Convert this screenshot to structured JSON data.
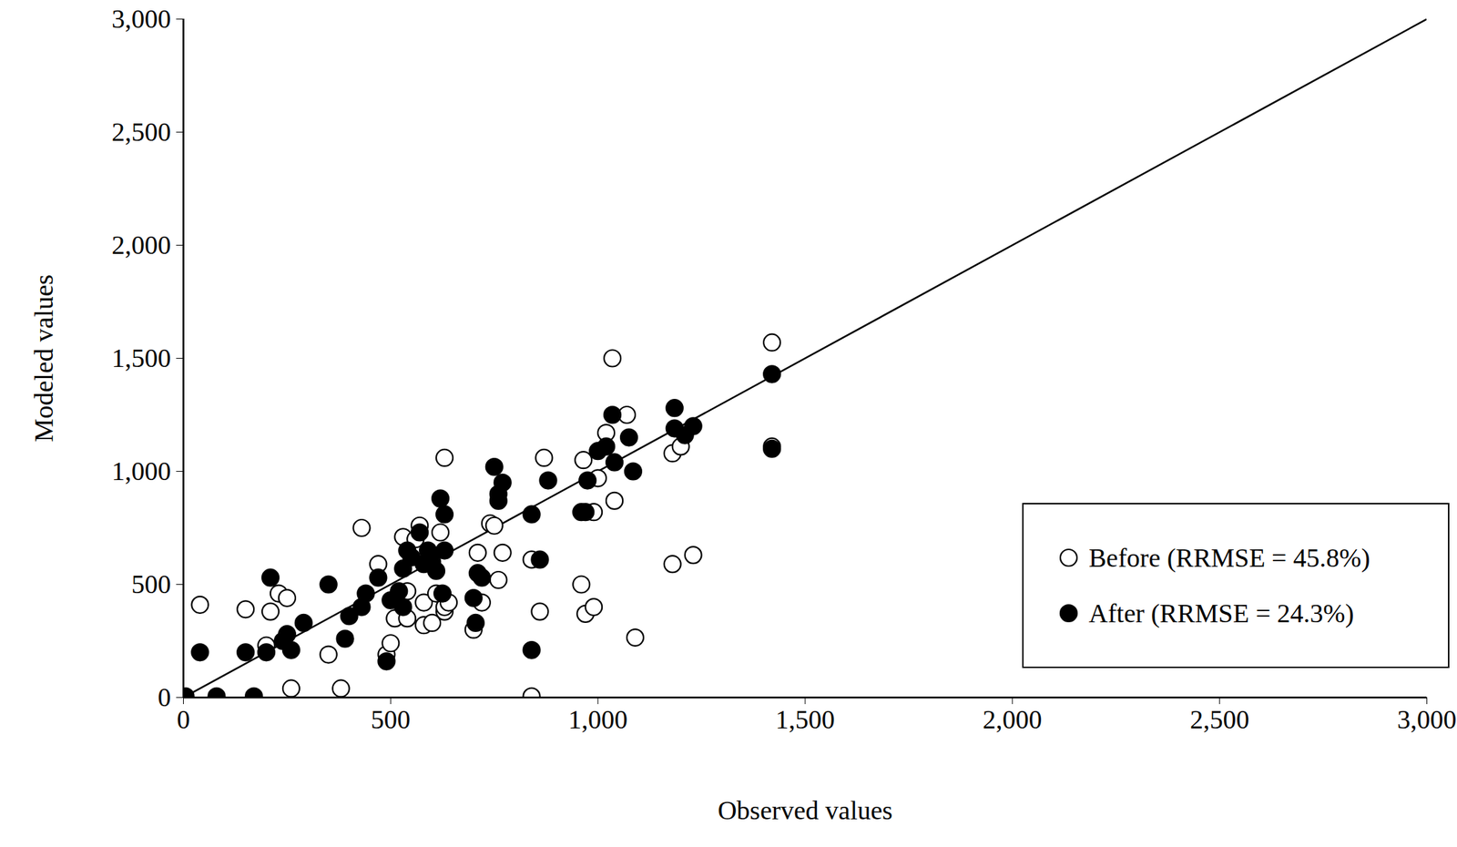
{
  "chart_data": {
    "type": "scatter",
    "x_label": "Observed values",
    "y_label": "Modeled values",
    "xlim": [
      0,
      3000
    ],
    "ylim": [
      0,
      3000
    ],
    "xticks": [
      0,
      500,
      1000,
      1500,
      2000,
      2500,
      3000
    ],
    "yticks": [
      0,
      500,
      1000,
      1500,
      2000,
      2500,
      3000
    ],
    "grid": false,
    "legend": "bottom-right",
    "reference_line": {
      "x": [
        0,
        3000
      ],
      "y": [
        0,
        3000
      ],
      "color": "#000000"
    },
    "series": [
      {
        "name": "Before (RRMSE = 45.8%)",
        "color": "#000000",
        "marker": "circle-open",
        "x": [
          40,
          150,
          210,
          230,
          250,
          260,
          350,
          380,
          430,
          470,
          490,
          500,
          510,
          530,
          540,
          540,
          560,
          570,
          580,
          580,
          600,
          610,
          620,
          630,
          630,
          630,
          710,
          720,
          740,
          750,
          760,
          770,
          840,
          840,
          860,
          870,
          960,
          965,
          970,
          990,
          990,
          1020,
          1035,
          1040,
          1070,
          1180,
          1180,
          1200,
          1230,
          1090,
          1420,
          1420,
          1000,
          200,
          640,
          700
        ],
        "values": [
          410,
          390,
          380,
          460,
          440,
          40,
          190,
          40,
          750,
          590,
          190,
          240,
          350,
          710,
          350,
          470,
          700,
          760,
          420,
          320,
          330,
          460,
          730,
          380,
          1060,
          400,
          640,
          420,
          770,
          760,
          520,
          640,
          610,
          5,
          380,
          1060,
          500,
          1050,
          370,
          400,
          820,
          1170,
          1500,
          870,
          1250,
          1080,
          590,
          1110,
          630,
          265,
          1570,
          1110,
          970,
          230,
          420,
          300
        ]
      },
      {
        "name": "After (RRMSE = 24.3%)",
        "color": "#000000",
        "marker": "circle",
        "x": [
          5,
          40,
          80,
          170,
          150,
          200,
          210,
          240,
          250,
          260,
          290,
          350,
          390,
          400,
          430,
          440,
          470,
          490,
          500,
          520,
          530,
          530,
          540,
          550,
          570,
          580,
          590,
          600,
          610,
          620,
          625,
          630,
          630,
          700,
          705,
          710,
          720,
          750,
          760,
          760,
          770,
          840,
          840,
          860,
          880,
          960,
          970,
          975,
          1000,
          1020,
          1035,
          1040,
          1075,
          1085,
          1185,
          1185,
          1230,
          1420,
          1420,
          1210
        ],
        "values": [
          5,
          200,
          5,
          5,
          200,
          200,
          530,
          250,
          280,
          210,
          330,
          500,
          260,
          360,
          400,
          460,
          530,
          160,
          430,
          470,
          400,
          570,
          650,
          620,
          730,
          590,
          650,
          600,
          560,
          880,
          460,
          810,
          650,
          440,
          330,
          550,
          530,
          1020,
          900,
          870,
          950,
          210,
          810,
          610,
          960,
          820,
          820,
          960,
          1090,
          1110,
          1250,
          1040,
          1150,
          1000,
          1280,
          1190,
          1200,
          1430,
          1100,
          1160
        ]
      }
    ]
  }
}
